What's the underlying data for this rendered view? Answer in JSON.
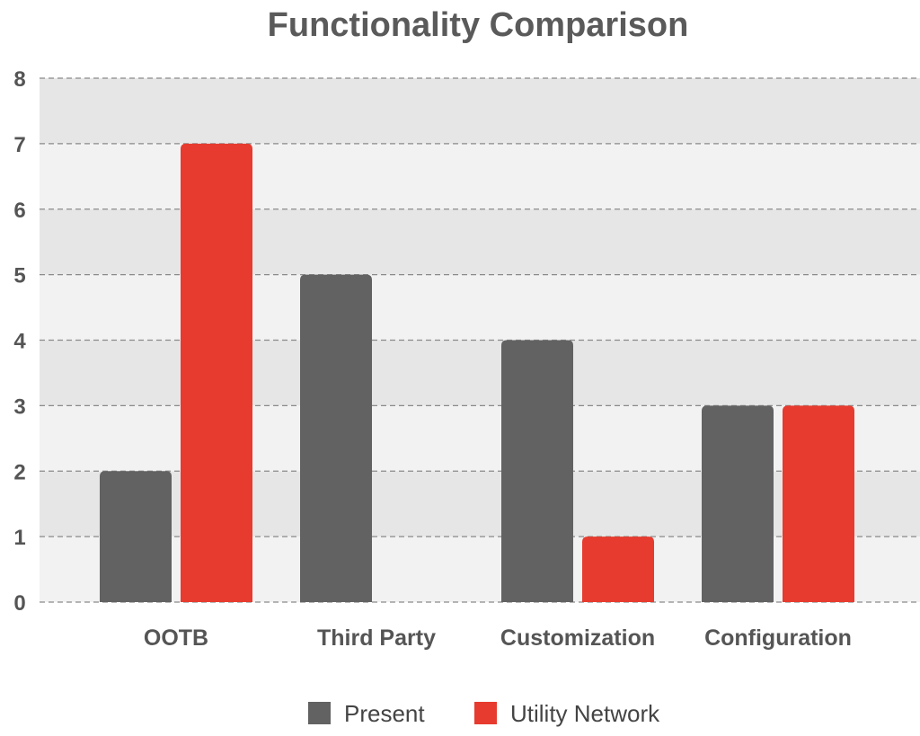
{
  "chart_data": {
    "type": "bar",
    "title": "Functionality Comparison",
    "xlabel": "",
    "ylabel": "",
    "categories": [
      "OOTB",
      "Third Party",
      "Customization",
      "Configuration"
    ],
    "series": [
      {
        "name": "Present",
        "values": [
          2,
          5,
          4,
          3
        ],
        "color": "#626262"
      },
      {
        "name": "Utility Network",
        "values": [
          7,
          0,
          1,
          3
        ],
        "color": "#e63b2e"
      }
    ],
    "ylim": [
      0,
      8
    ],
    "yticks": [
      "0",
      "1",
      "2",
      "3",
      "4",
      "5",
      "6",
      "7",
      "8"
    ],
    "grid": true,
    "legend_position": "bottom-center",
    "band_colors": [
      "#f2f2f2",
      "#e6e6e6"
    ]
  }
}
